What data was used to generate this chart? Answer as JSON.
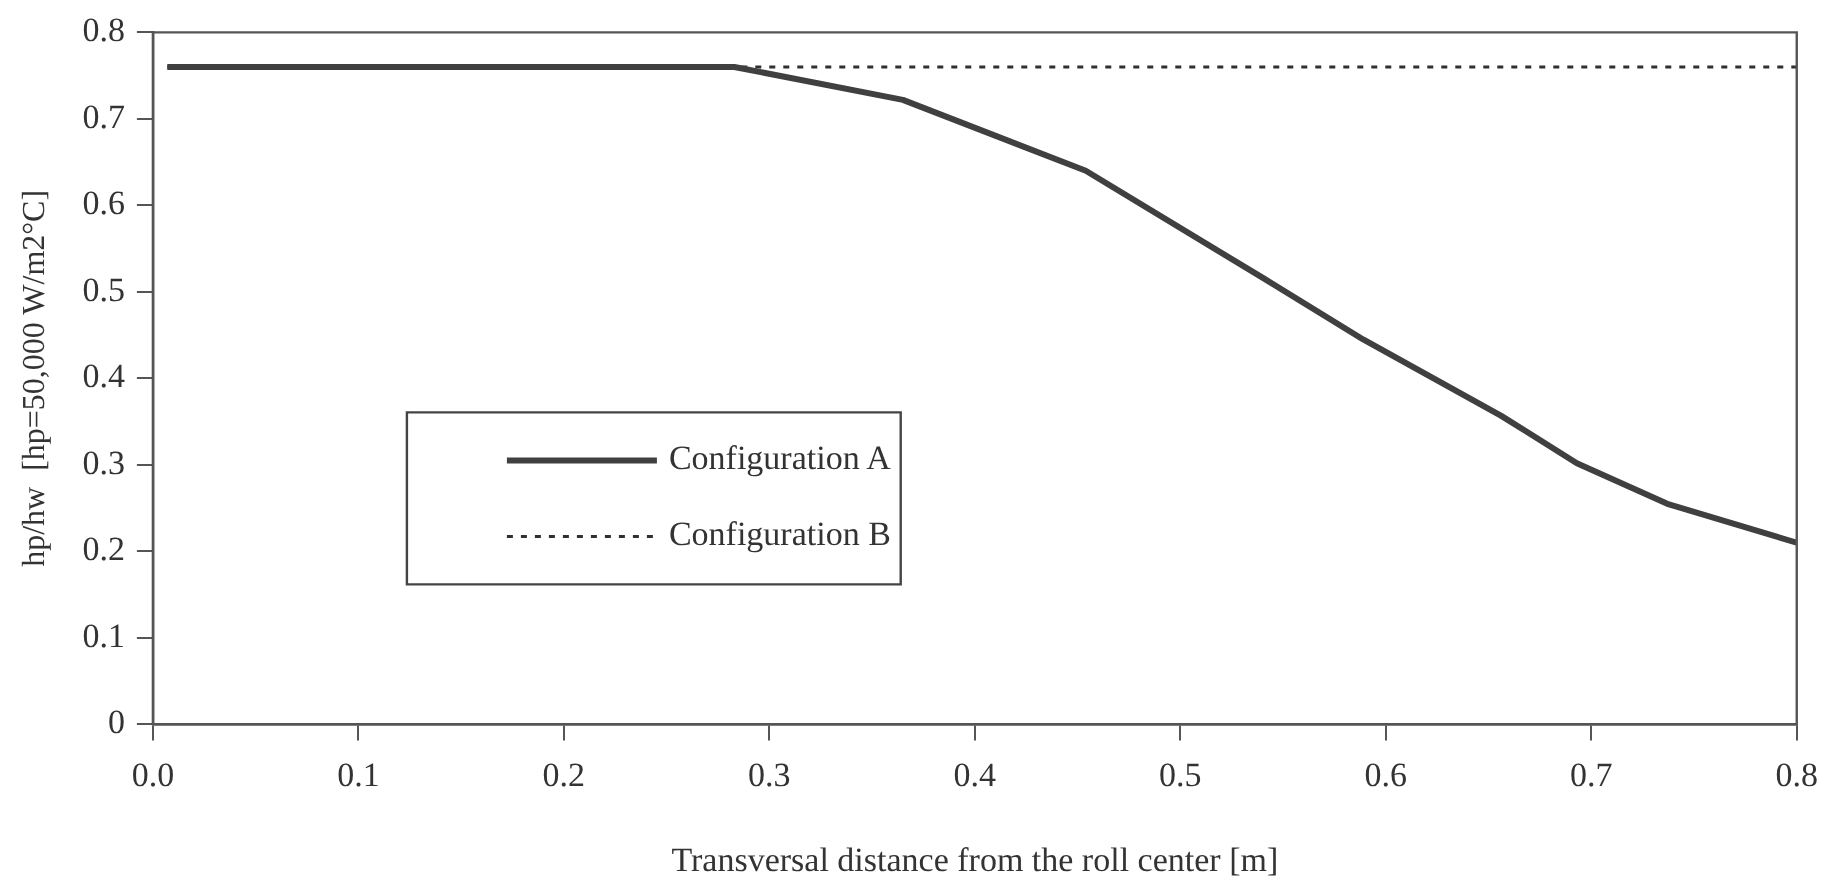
{
  "chart_data": {
    "type": "line",
    "xlabel": "Transversal distance from the roll center [m]",
    "ylabel": "hp/hw  [hp=50,000 W/m2°C]",
    "xlim": [
      0,
      0.8
    ],
    "xticks": [
      {
        "value": 0,
        "label": "0.0"
      },
      0.1,
      0.2,
      0.3,
      0.4,
      0.5,
      0.6,
      0.7,
      0.8
    ],
    "ylim": [
      0,
      0.8
    ],
    "yticks": [
      0,
      0.1,
      0.2,
      0.3,
      0.4,
      0.5,
      0.6,
      0.7,
      0.8
    ],
    "grid": false,
    "legend": "center left",
    "marker": "none",
    "series": [
      {
        "name": "Configuration A",
        "color": "#404040",
        "line_style": "solid",
        "x": [
          0.007,
          0.283,
          0.365,
          0.454,
          0.541,
          0.589,
          0.656,
          0.693,
          0.737,
          0.8
        ],
        "values": [
          0.76,
          0.76,
          0.722,
          0.64,
          0.515,
          0.445,
          0.357,
          0.302,
          0.255,
          0.21
        ]
      },
      {
        "name": "Configuration B",
        "color": "#303030",
        "line_style": "dotted",
        "x": [
          0.007,
          0.8
        ],
        "values": [
          0.76,
          0.76
        ]
      }
    ]
  }
}
